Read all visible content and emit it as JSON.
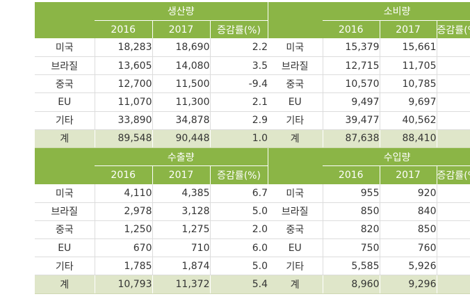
{
  "top": {
    "left_title": "생산량",
    "right_title": "소비량",
    "columns": [
      "2016",
      "2017",
      "증감률(%)"
    ],
    "rows": [
      {
        "left_label": "미국",
        "left": [
          "18,283",
          "18,690",
          "2.2"
        ],
        "right_label": "미국",
        "right": [
          "15,379",
          "15,661",
          ""
        ]
      },
      {
        "left_label": "브라질",
        "left": [
          "13,605",
          "14,080",
          "3.5"
        ],
        "right_label": "브라질",
        "right": [
          "12,715",
          "11,705",
          ""
        ]
      },
      {
        "left_label": "중국",
        "left": [
          "12,700",
          "11,500",
          "-9.4"
        ],
        "right_label": "중국",
        "right": [
          "10,570",
          "10,785",
          ""
        ]
      },
      {
        "left_label": "EU",
        "left": [
          "11,070",
          "11,300",
          "2.1"
        ],
        "right_label": "EU",
        "right": [
          "9,497",
          "9,697",
          ""
        ]
      },
      {
        "left_label": "기타",
        "left": [
          "33,890",
          "34,878",
          "2.9"
        ],
        "right_label": "기타",
        "right": [
          "39,477",
          "40,562",
          ""
        ]
      }
    ],
    "total": {
      "left_label": "계",
      "left": [
        "89,548",
        "90,448",
        "1.0"
      ],
      "right_label": "계",
      "right": [
        "87,638",
        "88,410",
        ""
      ]
    }
  },
  "bottom": {
    "left_title": "수출량",
    "right_title": "수입량",
    "columns": [
      "2016",
      "2017",
      "증감률(%)"
    ],
    "rows": [
      {
        "left_label": "미국",
        "left": [
          "4,110",
          "4,385",
          "6.7"
        ],
        "right_label": "미국",
        "right": [
          "955",
          "920",
          ""
        ]
      },
      {
        "left_label": "브라질",
        "left": [
          "2,978",
          "3,128",
          "5.0"
        ],
        "right_label": "브라질",
        "right": [
          "850",
          "840",
          ""
        ]
      },
      {
        "left_label": "중국",
        "left": [
          "1,250",
          "1,275",
          "2.0"
        ],
        "right_label": "중국",
        "right": [
          "820",
          "850",
          ""
        ]
      },
      {
        "left_label": "EU",
        "left": [
          "670",
          "710",
          "6.0"
        ],
        "right_label": "EU",
        "right": [
          "750",
          "760",
          ""
        ]
      },
      {
        "left_label": "기타",
        "left": [
          "1,785",
          "1,874",
          "5.0"
        ],
        "right_label": "기타",
        "right": [
          "5,585",
          "5,926",
          ""
        ]
      }
    ],
    "total": {
      "left_label": "계",
      "left": [
        "10,793",
        "11,372",
        "5.4"
      ],
      "right_label": "계",
      "right": [
        "8,960",
        "9,296",
        ""
      ]
    }
  }
}
